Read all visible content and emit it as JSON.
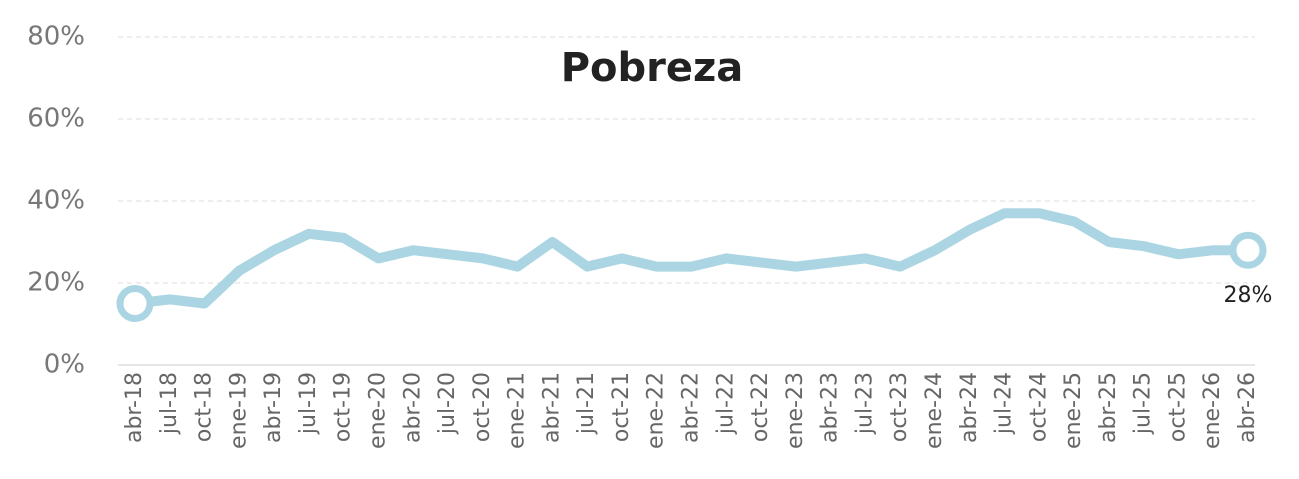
{
  "chart_data": {
    "type": "line",
    "title": "Pobreza",
    "categories": [
      "abr-18",
      "jul-18",
      "oct-18",
      "ene-19",
      "abr-19",
      "jul-19",
      "oct-19",
      "ene-20",
      "abr-20",
      "jul-20",
      "oct-20",
      "ene-21",
      "abr-21",
      "jul-21",
      "oct-21",
      "ene-22",
      "abr-22",
      "jul-22",
      "oct-22",
      "ene-23",
      "abr-23",
      "jul-23",
      "oct-23",
      "ene-24",
      "abr-24",
      "jul-24",
      "oct-24",
      "ene-25",
      "abr-25",
      "jul-25",
      "oct-25",
      "ene-26",
      "abr-26"
    ],
    "series": [
      {
        "name": "Pobreza",
        "color": "#abd5e3",
        "values": [
          15,
          16,
          15,
          23,
          28,
          32,
          31,
          26,
          28,
          27,
          26,
          24,
          30,
          24,
          26,
          24,
          24,
          26,
          25,
          24,
          25,
          26,
          24,
          28,
          33,
          37,
          37,
          35,
          30,
          29,
          27,
          28,
          28
        ],
        "value_labels": [
          null,
          null,
          null,
          null,
          null,
          null,
          null,
          null,
          null,
          null,
          null,
          null,
          null,
          null,
          null,
          null,
          null,
          null,
          null,
          null,
          null,
          null,
          null,
          null,
          null,
          null,
          null,
          null,
          null,
          null,
          null,
          null,
          "28%"
        ]
      }
    ],
    "ylim": [
      0,
      80
    ],
    "yticks": [
      {
        "value": 0,
        "label": "0%"
      },
      {
        "value": 20,
        "label": "20%"
      },
      {
        "value": 40,
        "label": "40%"
      },
      {
        "value": 60,
        "label": "60%"
      },
      {
        "value": 80,
        "label": "80%"
      }
    ],
    "grid": true
  }
}
